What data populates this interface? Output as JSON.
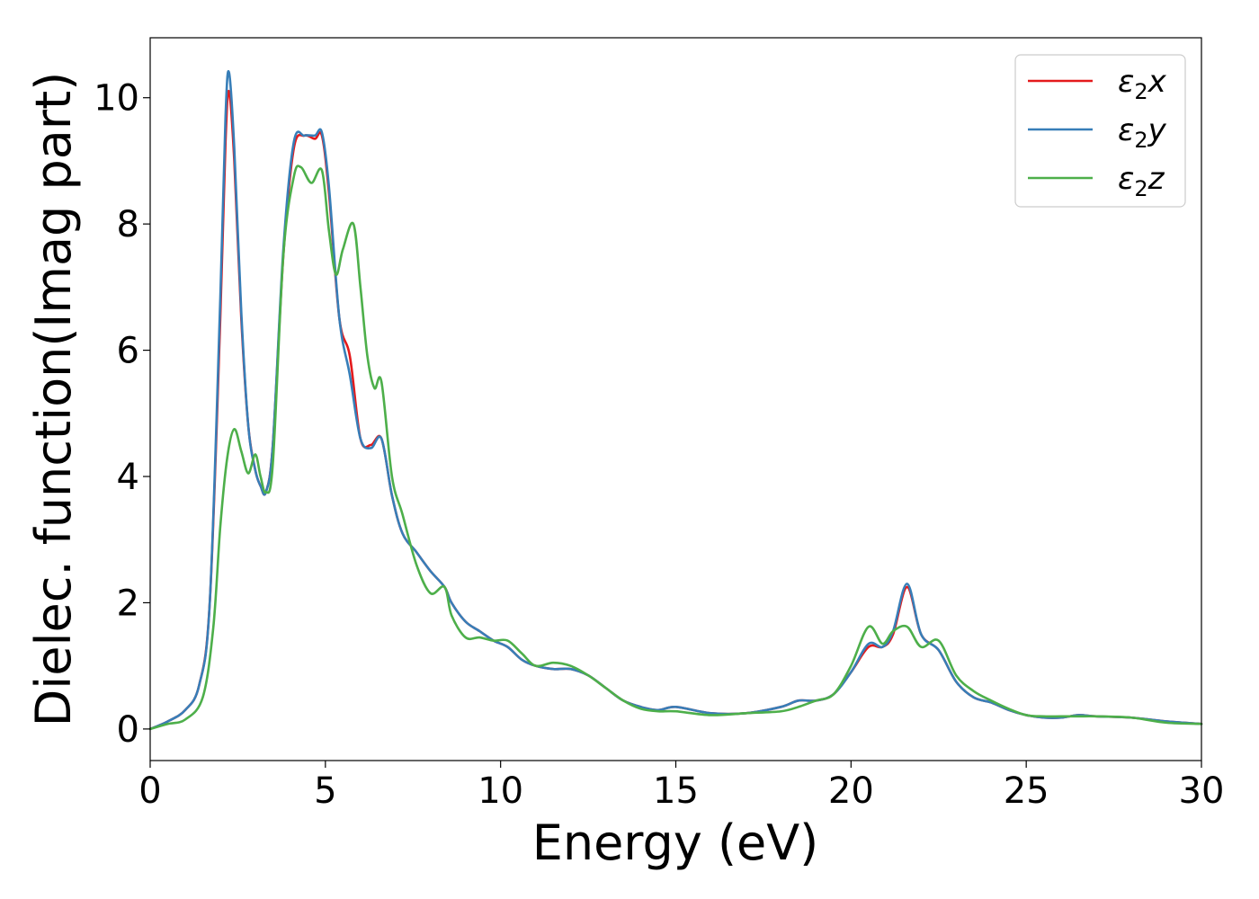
{
  "chart_data": {
    "type": "line",
    "title": "",
    "xlabel": "Energy (eV)",
    "ylabel": "Dielec. function(Imag part)",
    "xlim": [
      0,
      30
    ],
    "ylim": [
      -0.5,
      10.95
    ],
    "xticks": [
      0,
      5,
      10,
      15,
      20,
      25,
      30
    ],
    "xtick_labels": [
      "0",
      "5",
      "10",
      "15",
      "20",
      "25",
      "30"
    ],
    "yticks": [
      0,
      2,
      4,
      6,
      8,
      10
    ],
    "ytick_labels": [
      "0",
      "2",
      "4",
      "6",
      "8",
      "10"
    ],
    "grid": false,
    "legend_position": "top-right",
    "series": [
      {
        "name": "ε2x",
        "legend": {
          "base": "ε",
          "sub": "2",
          "var": "x"
        },
        "color": "#e41a1c",
        "x": [
          0,
          0.5,
          1.0,
          1.4,
          1.7,
          2.0,
          2.15,
          2.25,
          2.4,
          2.6,
          2.8,
          3.0,
          3.15,
          3.3,
          3.5,
          3.8,
          4.1,
          4.4,
          4.7,
          4.9,
          5.1,
          5.4,
          5.7,
          6.0,
          6.3,
          6.6,
          6.9,
          7.2,
          7.6,
          8.0,
          8.4,
          8.6,
          9.0,
          9.4,
          9.8,
          10.2,
          10.6,
          11.0,
          11.5,
          12.0,
          12.5,
          13.0,
          13.5,
          14.0,
          14.5,
          15.0,
          16.0,
          17.0,
          18.0,
          18.5,
          19.0,
          19.5,
          20.0,
          20.5,
          20.9,
          21.2,
          21.6,
          22.0,
          22.5,
          23.0,
          23.5,
          24.0,
          24.5,
          25.0,
          25.5,
          26.0,
          26.5,
          27.0,
          28.0,
          29.0,
          30.0
        ],
        "values": [
          0.0,
          0.12,
          0.3,
          0.7,
          2.0,
          6.5,
          9.3,
          10.1,
          9.0,
          6.5,
          4.8,
          4.1,
          3.85,
          3.75,
          4.5,
          7.5,
          9.2,
          9.4,
          9.35,
          9.4,
          8.5,
          6.5,
          5.9,
          4.6,
          4.5,
          4.6,
          3.7,
          3.1,
          2.8,
          2.5,
          2.25,
          2.0,
          1.7,
          1.55,
          1.4,
          1.3,
          1.1,
          1.0,
          0.95,
          0.95,
          0.85,
          0.65,
          0.45,
          0.35,
          0.3,
          0.35,
          0.25,
          0.25,
          0.35,
          0.45,
          0.45,
          0.55,
          0.9,
          1.3,
          1.3,
          1.5,
          2.25,
          1.5,
          1.25,
          0.75,
          0.5,
          0.42,
          0.3,
          0.22,
          0.18,
          0.18,
          0.22,
          0.2,
          0.18,
          0.12,
          0.08
        ]
      },
      {
        "name": "ε2y",
        "legend": {
          "base": "ε",
          "sub": "2",
          "var": "y"
        },
        "color": "#377eb8",
        "x": [
          0,
          0.5,
          1.0,
          1.4,
          1.7,
          2.0,
          2.15,
          2.25,
          2.4,
          2.6,
          2.8,
          3.0,
          3.15,
          3.3,
          3.5,
          3.8,
          4.1,
          4.4,
          4.7,
          4.9,
          5.1,
          5.4,
          5.7,
          6.0,
          6.3,
          6.6,
          6.9,
          7.2,
          7.6,
          8.0,
          8.4,
          8.6,
          9.0,
          9.4,
          9.8,
          10.2,
          10.6,
          11.0,
          11.5,
          12.0,
          12.5,
          13.0,
          13.5,
          14.0,
          14.5,
          15.0,
          16.0,
          17.0,
          18.0,
          18.5,
          19.0,
          19.5,
          20.0,
          20.5,
          20.9,
          21.2,
          21.6,
          22.0,
          22.5,
          23.0,
          23.5,
          24.0,
          24.5,
          25.0,
          25.5,
          26.0,
          26.5,
          27.0,
          28.0,
          29.0,
          30.0
        ],
        "values": [
          0.0,
          0.12,
          0.3,
          0.7,
          2.0,
          6.8,
          9.7,
          10.4,
          9.2,
          6.6,
          4.8,
          4.1,
          3.85,
          3.75,
          4.5,
          7.6,
          9.3,
          9.4,
          9.4,
          9.45,
          8.6,
          6.5,
          5.6,
          4.6,
          4.45,
          4.6,
          3.7,
          3.1,
          2.8,
          2.5,
          2.25,
          2.0,
          1.7,
          1.55,
          1.4,
          1.3,
          1.1,
          1.0,
          0.95,
          0.95,
          0.85,
          0.65,
          0.45,
          0.35,
          0.3,
          0.35,
          0.25,
          0.25,
          0.35,
          0.45,
          0.45,
          0.55,
          0.9,
          1.35,
          1.3,
          1.55,
          2.3,
          1.5,
          1.25,
          0.75,
          0.5,
          0.42,
          0.3,
          0.22,
          0.18,
          0.18,
          0.22,
          0.2,
          0.18,
          0.12,
          0.08
        ]
      },
      {
        "name": "ε2z",
        "legend": {
          "base": "ε",
          "sub": "2",
          "var": "z"
        },
        "color": "#4daf4a",
        "x": [
          0,
          0.5,
          1.0,
          1.5,
          1.8,
          2.0,
          2.2,
          2.4,
          2.6,
          2.8,
          3.0,
          3.15,
          3.3,
          3.5,
          3.8,
          4.1,
          4.3,
          4.6,
          4.9,
          5.1,
          5.3,
          5.5,
          5.8,
          6.0,
          6.2,
          6.4,
          6.6,
          6.9,
          7.2,
          7.6,
          8.0,
          8.4,
          8.6,
          9.0,
          9.4,
          9.8,
          10.2,
          10.6,
          11.0,
          11.5,
          12.0,
          12.5,
          13.0,
          13.5,
          14.0,
          14.5,
          15.0,
          16.0,
          17.0,
          18.0,
          18.5,
          19.0,
          19.5,
          20.0,
          20.5,
          20.9,
          21.2,
          21.6,
          22.0,
          22.5,
          23.0,
          23.5,
          24.0,
          24.5,
          25.0,
          25.5,
          26.0,
          26.5,
          27.0,
          28.0,
          29.0,
          30.0
        ],
        "values": [
          0.0,
          0.08,
          0.15,
          0.5,
          1.6,
          3.2,
          4.3,
          4.75,
          4.4,
          4.05,
          4.35,
          4.0,
          3.75,
          4.2,
          7.5,
          8.75,
          8.9,
          8.65,
          8.85,
          7.9,
          7.2,
          7.6,
          8.0,
          7.0,
          5.9,
          5.4,
          5.5,
          4.0,
          3.4,
          2.6,
          2.15,
          2.25,
          1.8,
          1.45,
          1.45,
          1.4,
          1.4,
          1.2,
          1.0,
          1.05,
          1.0,
          0.85,
          0.65,
          0.45,
          0.32,
          0.28,
          0.28,
          0.22,
          0.25,
          0.28,
          0.35,
          0.45,
          0.55,
          1.0,
          1.62,
          1.35,
          1.55,
          1.62,
          1.3,
          1.4,
          0.85,
          0.6,
          0.45,
          0.32,
          0.22,
          0.2,
          0.2,
          0.2,
          0.2,
          0.18,
          0.1,
          0.08
        ]
      }
    ]
  }
}
